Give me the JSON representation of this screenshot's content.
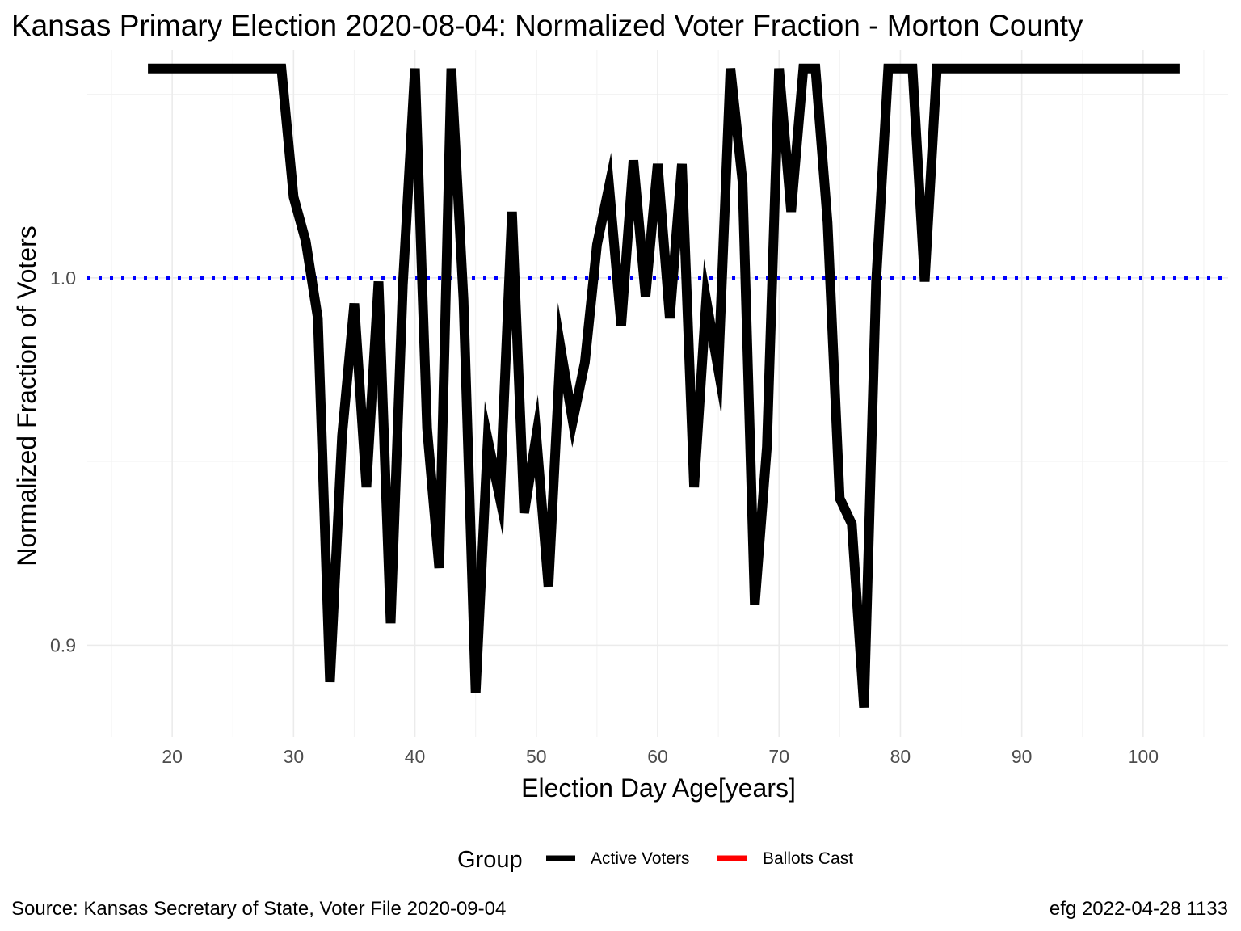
{
  "chart_data": {
    "type": "line",
    "title": "Kansas Primary Election 2020-08-04:  Normalized Voter Fraction - Morton County",
    "xlabel": "Election Day Age[years]",
    "ylabel": "Normalized Fraction of Voters",
    "xlim": [
      13,
      107
    ],
    "ylim": [
      0.875,
      1.062
    ],
    "x_ticks": [
      20,
      30,
      40,
      50,
      60,
      70,
      80,
      90,
      100
    ],
    "y_ticks": [
      0.9,
      1.0
    ],
    "y_tick_labels": [
      "0.9",
      "1.0"
    ],
    "x_tick_labels": [
      "20",
      "30",
      "40",
      "50",
      "60",
      "70",
      "80",
      "90",
      "100"
    ],
    "grid": true,
    "reference_line": {
      "y": 1.0,
      "style": "dotted",
      "color": "#0000ff"
    },
    "legend": {
      "title": "Group",
      "position": "bottom",
      "entries": [
        {
          "label": "Active Voters",
          "color": "#000000"
        },
        {
          "label": "Ballots Cast",
          "color": "#ff0000"
        }
      ]
    },
    "series": [
      {
        "name": "Active Voters",
        "color": "#000000",
        "x": [
          18,
          29,
          30,
          31,
          32,
          33,
          34,
          35,
          36,
          37,
          38,
          39,
          40,
          41,
          42,
          43,
          44,
          45,
          46,
          47,
          48,
          49,
          50,
          51,
          52,
          53,
          54,
          55,
          56,
          57,
          58,
          59,
          60,
          61,
          62,
          63,
          64,
          65,
          66,
          67,
          68,
          69,
          70,
          71,
          72,
          73,
          74,
          75,
          76,
          77,
          78,
          79,
          80,
          81,
          82,
          83,
          103
        ],
        "y": [
          1.057,
          1.057,
          1.022,
          1.01,
          0.989,
          0.89,
          0.957,
          0.993,
          0.943,
          0.999,
          0.906,
          0.998,
          1.057,
          0.959,
          0.921,
          1.057,
          0.994,
          0.887,
          0.956,
          0.94,
          1.018,
          0.936,
          0.957,
          0.916,
          0.981,
          0.961,
          0.977,
          1.009,
          1.025,
          0.987,
          1.032,
          0.995,
          1.031,
          0.989,
          1.031,
          0.943,
          0.994,
          0.975,
          1.057,
          1.026,
          0.911,
          0.954,
          1.057,
          1.018,
          1.057,
          1.057,
          1.015,
          0.94,
          0.933,
          0.883,
          0.999,
          1.057,
          1.057,
          1.057,
          0.999,
          1.057,
          1.057
        ]
      }
    ]
  },
  "caption": {
    "source": "Source:  Kansas Secretary of State, Voter File  2020-09-04",
    "credit": "efg 2022-04-28 1133"
  }
}
